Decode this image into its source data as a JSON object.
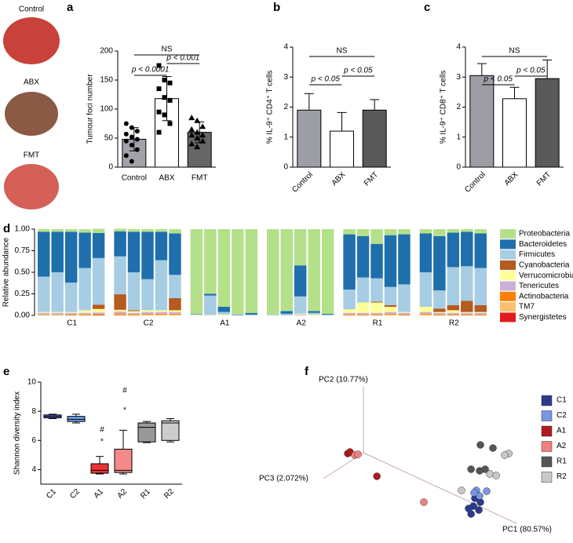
{
  "chart_data": [
    {
      "type": "bar",
      "panel": "a",
      "image_labels": [
        "Control",
        "ABX",
        "FMT"
      ],
      "ylabel": "Tumour foci number",
      "categories": [
        "Control",
        "ABX",
        "FMT"
      ],
      "values": [
        48,
        118,
        60
      ],
      "errors": [
        20,
        38,
        18
      ],
      "colors": [
        "#a2a2aa",
        "#ffffff",
        "#666666"
      ],
      "points": [
        [
          75,
          68,
          62,
          57,
          52,
          48,
          45,
          38,
          30,
          20,
          10
        ],
        [
          175,
          150,
          145,
          135,
          120,
          115,
          95,
          90,
          75,
          60
        ],
        [
          85,
          80,
          70,
          65,
          60,
          55,
          55,
          50,
          45,
          40,
          35
        ]
      ],
      "markers": [
        "circle",
        "square",
        "triangle"
      ],
      "ylim": [
        0,
        200
      ],
      "yticks": [
        0,
        50,
        100,
        150,
        200
      ],
      "annotations": [
        "NS",
        "p < 0.0001",
        "p < 0.001"
      ]
    },
    {
      "type": "bar",
      "panel": "b",
      "ylabel": "% IL-9⁺ CD4⁺ T cells",
      "categories": [
        "Control",
        "ABX",
        "FMT"
      ],
      "values": [
        1.9,
        1.2,
        1.9
      ],
      "errors": [
        0.55,
        0.62,
        0.35
      ],
      "colors": [
        "#9d9da5",
        "#ffffff",
        "#595959"
      ],
      "ylim": [
        0,
        4
      ],
      "yticks": [
        0,
        1,
        2,
        3,
        4
      ],
      "annotations": [
        "NS",
        "p < 0.05",
        "p < 0.05"
      ]
    },
    {
      "type": "bar",
      "panel": "c",
      "ylabel": "% IL-9⁺ CD8⁺ T cells",
      "categories": [
        "Control",
        "ABX",
        "FMT"
      ],
      "values": [
        3.05,
        2.28,
        2.95
      ],
      "errors": [
        0.4,
        0.38,
        0.62
      ],
      "colors": [
        "#9d9da5",
        "#ffffff",
        "#595959"
      ],
      "ylim": [
        0,
        4
      ],
      "yticks": [
        0,
        1,
        2,
        3,
        4
      ],
      "annotations": [
        "NS",
        "p < 0.05",
        "p < 0.05"
      ]
    },
    {
      "type": "stacked_bar",
      "panel": "d",
      "ylabel": "Relative abundance",
      "groups": [
        "C1",
        "C2",
        "A1",
        "A2",
        "R1",
        "R2"
      ],
      "ylim": [
        0,
        1
      ],
      "yticks": [
        {
          "value": 0,
          "label": "0.00"
        },
        {
          "value": 0.25,
          "label": "0.25"
        },
        {
          "value": 0.5,
          "label": "0.50"
        },
        {
          "value": 0.75,
          "label": "0.75"
        },
        {
          "value": 1,
          "label": "1.00"
        }
      ],
      "series": [
        {
          "name": "Proteobacteria",
          "color": "#b5e08a",
          "values": [
            0.03,
            0.03,
            0.03,
            0.04,
            0.05,
            0.03,
            0.03,
            0.03,
            0.03,
            0.05,
            0.98,
            0.75,
            0.9,
            0.99,
            0.97,
            0.99,
            0.95,
            0.42,
            0.95,
            0.98,
            0.06,
            0.08,
            0.17,
            0.07,
            0.06,
            0.05,
            0.08,
            0.04,
            0.03,
            0.05
          ]
        },
        {
          "name": "Bacteroidetes",
          "color": "#1f6fad",
          "values": [
            0.52,
            0.47,
            0.59,
            0.41,
            0.29,
            0.29,
            0.47,
            0.55,
            0.33,
            0.48,
            0.005,
            0.02,
            0.06,
            0.005,
            0.02,
            0,
            0.03,
            0.36,
            0.02,
            0.01,
            0.64,
            0.48,
            0.4,
            0.6,
            0.58,
            0.45,
            0.63,
            0.4,
            0.4,
            0.4
          ]
        },
        {
          "name": "Firmicutes",
          "color": "#a6cde3",
          "values": [
            0.41,
            0.46,
            0.34,
            0.49,
            0.54,
            0.44,
            0.44,
            0.36,
            0.58,
            0.27,
            0.01,
            0.22,
            0.03,
            0.005,
            0.01,
            0.01,
            0.02,
            0.2,
            0.02,
            0.01,
            0.23,
            0.29,
            0.27,
            0.21,
            0.32,
            0.4,
            0.21,
            0.44,
            0.4,
            0.43
          ]
        },
        {
          "name": "Cyanobacteria",
          "color": "#b55a20",
          "values": [
            0,
            0,
            0,
            0,
            0.05,
            0.18,
            0.01,
            0,
            0,
            0.14,
            0,
            0,
            0,
            0,
            0,
            0,
            0,
            0,
            0,
            0,
            0,
            0,
            0.01,
            0.02,
            0,
            0,
            0.04,
            0.06,
            0.13,
            0.08
          ]
        },
        {
          "name": "Verrucomicrobia",
          "color": "#ffff99",
          "values": [
            0.01,
            0.01,
            0.01,
            0.03,
            0.04,
            0.02,
            0.02,
            0.02,
            0.02,
            0.02,
            0.005,
            0.005,
            0.01,
            0,
            0,
            0,
            0,
            0.01,
            0.01,
            0,
            0.04,
            0.12,
            0.12,
            0.06,
            0.01,
            0.06,
            0.01,
            0.03,
            0.01,
            0.01
          ]
        },
        {
          "name": "Tenericutes",
          "color": "#c9b1d6",
          "values": [
            0.02,
            0.02,
            0.02,
            0.02,
            0.02,
            0.02,
            0.02,
            0.02,
            0.02,
            0.02,
            0,
            0.005,
            0,
            0,
            0,
            0,
            0,
            0.01,
            0,
            0,
            0.02,
            0.02,
            0.02,
            0.02,
            0.02,
            0.02,
            0.02,
            0.02,
            0.02,
            0.02
          ]
        },
        {
          "name": "Actinobacteria",
          "color": "#ff7f00",
          "values": [
            0.005,
            0.005,
            0.01,
            0.01,
            0.01,
            0.01,
            0.01,
            0.01,
            0.01,
            0.01,
            0,
            0,
            0,
            0,
            0,
            0,
            0,
            0,
            0,
            0,
            0.01,
            0.01,
            0.01,
            0.01,
            0.01,
            0.01,
            0.01,
            0.01,
            0.01,
            0.01
          ]
        },
        {
          "name": "TM7",
          "color": "#fdbf6f",
          "values": [
            0.005,
            0.005,
            0,
            0,
            0,
            0.01,
            0,
            0.01,
            0.01,
            0.01,
            0,
            0,
            0,
            0,
            0,
            0,
            0,
            0,
            0,
            0,
            0,
            0,
            0,
            0.01,
            0,
            0.01,
            0,
            0,
            0,
            0
          ]
        },
        {
          "name": "Synergistetes",
          "color": "#e31a1c",
          "values": [
            0,
            0,
            0,
            0,
            0.005,
            0.005,
            0,
            0,
            0,
            0,
            0,
            0,
            0,
            0,
            0,
            0,
            0,
            0,
            0,
            0,
            0,
            0,
            0,
            0,
            0,
            0,
            0,
            0,
            0,
            0
          ]
        }
      ]
    },
    {
      "type": "box",
      "panel": "e",
      "ylabel": "Shannon diversity index",
      "categories": [
        "C1",
        "C2",
        "A1",
        "A2",
        "R1",
        "R2"
      ],
      "min": [
        7.5,
        7.2,
        3.7,
        3.7,
        5.85,
        5.9
      ],
      "q1": [
        7.55,
        7.3,
        3.75,
        3.8,
        5.9,
        6.0
      ],
      "median": [
        7.65,
        7.45,
        3.95,
        3.95,
        6.9,
        7.2
      ],
      "q3": [
        7.75,
        7.65,
        4.4,
        5.4,
        7.2,
        7.35
      ],
      "max": [
        7.8,
        7.8,
        4.9,
        6.7,
        7.3,
        7.5
      ],
      "colors": [
        "#5566dd",
        "#6fa0e8",
        "#ee3333",
        "#f48a8a",
        "#999999",
        "#cccccc"
      ],
      "ylim": [
        3,
        10
      ],
      "yticks": [
        4,
        6,
        8,
        10
      ],
      "annotations": [
        "#",
        "*",
        "#",
        "*"
      ]
    },
    {
      "type": "scatter3d",
      "panel": "f",
      "axis_labels": [
        "PC1 (80.57%)",
        "PC2 (10.77%)",
        "PC3 (2.072%)"
      ],
      "series": [
        {
          "name": "C1",
          "color": "#2b3a8c",
          "x": [
            70.3,
            69.7,
            71.9,
            68.8,
            72.5,
            67.8
          ],
          "y": [
            22.5,
            17.5,
            15,
            12.5,
            20,
            16
          ]
        },
        {
          "name": "C2",
          "color": "#7a95e6",
          "x": [
            70.9,
            72.2,
            70,
            75
          ],
          "y": [
            27.5,
            24,
            26,
            27
          ]
        },
        {
          "name": "A1",
          "color": "#b0191e",
          "x": [
            19.7,
            31.3,
            20.6
          ],
          "y": [
            51,
            36.5,
            52
          ]
        },
        {
          "name": "A2",
          "color": "#f08080",
          "x": [
            22.5,
            23.75,
            50
          ],
          "y": [
            50,
            50.5,
            20
          ]
        },
        {
          "name": "R1",
          "color": "#555555",
          "x": [
            72.5,
            77.5,
            68.8,
            72.2,
            74.4
          ],
          "y": [
            56.5,
            54.5,
            41,
            40,
            41
          ]
        },
        {
          "name": "R2",
          "color": "#c8c8c8",
          "x": [
            83.8,
            82.2,
            76.3,
            78.8,
            65
          ],
          "y": [
            51,
            50,
            38,
            37,
            27.5
          ]
        }
      ]
    }
  ]
}
